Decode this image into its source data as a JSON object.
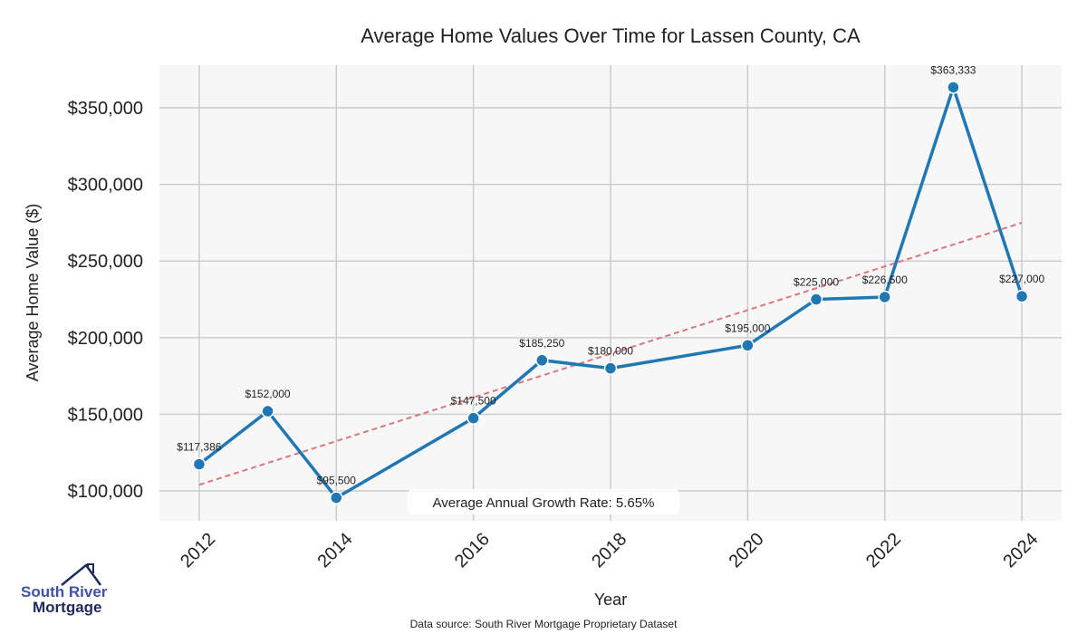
{
  "chart_data": {
    "type": "line",
    "title": "Average Home Values Over Time for Lassen County, CA",
    "xlabel": "Year",
    "ylabel": "Average Home Value ($)",
    "x": [
      2012,
      2013,
      2014,
      2016,
      2017,
      2018,
      2020,
      2021,
      2022,
      2023,
      2024
    ],
    "series": [
      {
        "name": "Average Home Value",
        "color": "#1f77b4",
        "values": [
          117386,
          152000,
          95500,
          147500,
          185250,
          180000,
          195000,
          225000,
          226500,
          363333,
          227000
        ],
        "labels": [
          "$117,386",
          "$152,000",
          "$95,500",
          "$147,500",
          "$185,250",
          "$180,000",
          "$195,000",
          "$225,000",
          "$226,500",
          "$363,333",
          "$227,000"
        ]
      },
      {
        "name": "Trend",
        "color": "#d9777b",
        "style": "dashed",
        "x": [
          2012,
          2024
        ],
        "values": [
          104000,
          275000
        ]
      }
    ],
    "xticks": [
      2012,
      2014,
      2016,
      2018,
      2020,
      2022,
      2024
    ],
    "xtick_labels": [
      "2012",
      "2014",
      "2016",
      "2018",
      "2020",
      "2022",
      "2024"
    ],
    "yticks": [
      100000,
      150000,
      200000,
      250000,
      300000,
      350000
    ],
    "ytick_labels": [
      "$100,000",
      "$150,000",
      "$200,000",
      "$250,000",
      "$300,000",
      "$350,000"
    ],
    "xlim": [
      2011.42,
      2024.58
    ],
    "ylim": [
      80500,
      377800
    ],
    "grid": true,
    "annotation": "Average Annual Growth Rate: 5.65%"
  },
  "footer": {
    "source": "Data source: South River Mortgage Proprietary Dataset"
  },
  "logo": {
    "line1": "South River",
    "line2": "Mortgage"
  }
}
